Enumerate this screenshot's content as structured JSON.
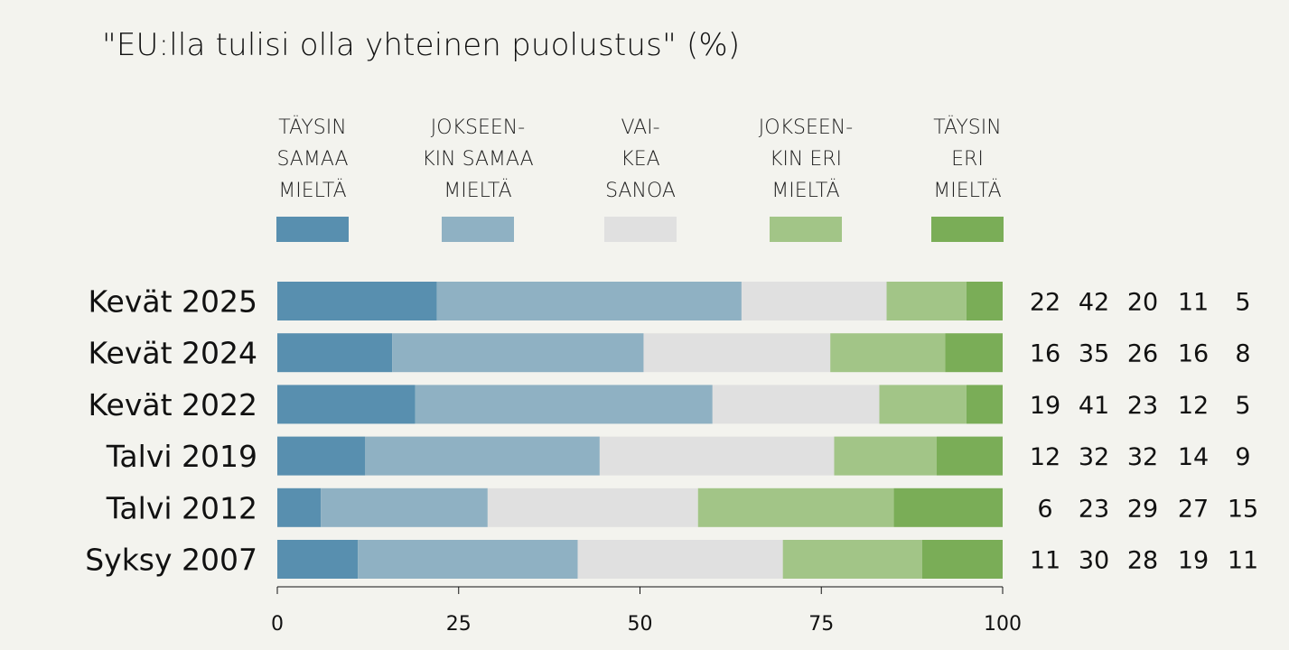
{
  "chart_data": {
    "type": "bar",
    "orientation": "horizontal-stacked",
    "title": "\"EU:lla tulisi olla yhteinen puolustus\" (%)",
    "categories": [
      "Kevät 2025",
      "Kevät 2024",
      "Kevät 2022",
      "Talvi 2019",
      "Talvi 2012",
      "Syksy 2007"
    ],
    "series": [
      {
        "name": "TÄYSIN SAMAA MIELTÄ",
        "legend_lines": [
          "TÄYSIN",
          "SAMAA",
          "MIELTÄ"
        ],
        "color": "#588faf",
        "values": [
          22,
          16,
          19,
          12,
          6,
          11
        ]
      },
      {
        "name": "JOKSEENKIN SAMAA MIELTÄ",
        "legend_lines": [
          "JOKSEEN-",
          "KIN SAMAA",
          "MIELTÄ"
        ],
        "color": "#8fb1c3",
        "values": [
          42,
          35,
          41,
          32,
          23,
          30
        ]
      },
      {
        "name": "VAIKEA SANOA",
        "legend_lines": [
          "VAI-",
          "KEA",
          "SANOA"
        ],
        "color": "#e0e0e0",
        "values": [
          20,
          26,
          23,
          32,
          29,
          28
        ]
      },
      {
        "name": "JOKSEENKIN ERI MIELTÄ",
        "legend_lines": [
          "JOKSEEN-",
          "KIN ERI",
          "MIELTÄ"
        ],
        "color": "#a2c587",
        "values": [
          11,
          16,
          12,
          14,
          27,
          19
        ]
      },
      {
        "name": "TÄYSIN ERI MIELTÄ",
        "legend_lines": [
          "TÄYSIN",
          "ERI",
          "MIELTÄ"
        ],
        "color": "#7aad57",
        "values": [
          5,
          8,
          5,
          9,
          15,
          11
        ]
      }
    ],
    "xlim": [
      0,
      100
    ],
    "xticks": [
      0,
      25,
      50,
      75,
      100
    ],
    "legend": "top",
    "grid": false
  }
}
